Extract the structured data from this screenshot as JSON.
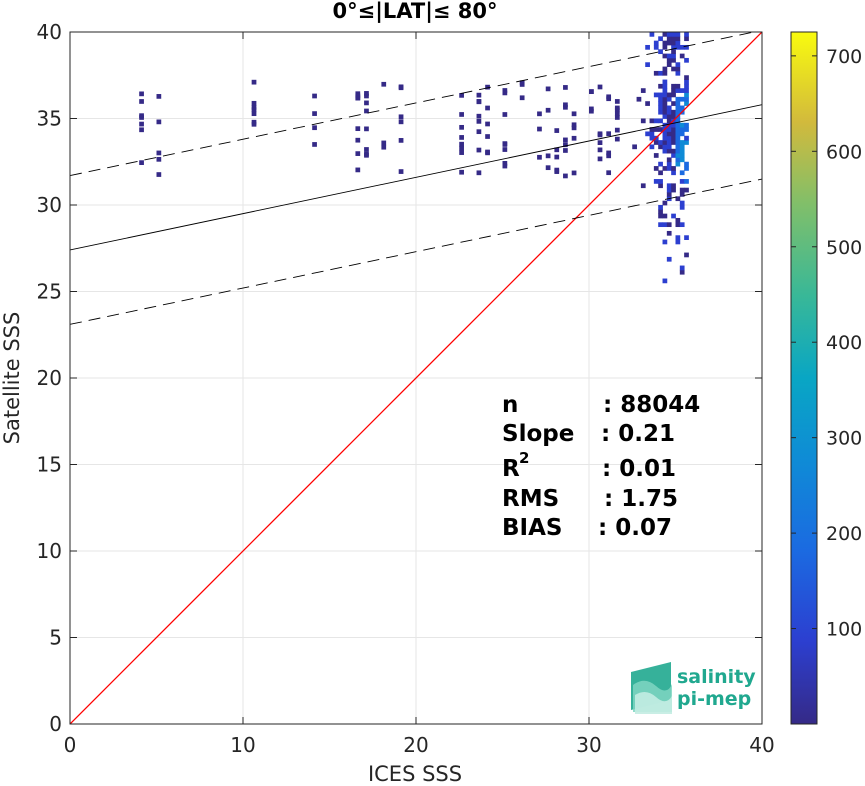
{
  "chart_data": {
    "type": "heatmap",
    "title": "0°≤|LAT|≤ 80°",
    "xlabel": "ICES SSS",
    "ylabel": "Satellite SSS",
    "xlim": [
      0,
      40
    ],
    "ylim": [
      0,
      40
    ],
    "xticks": [
      "0",
      "10",
      "20",
      "30",
      "40"
    ],
    "yticks": [
      "0",
      "5",
      "10",
      "15",
      "20",
      "25",
      "30",
      "35",
      "40"
    ],
    "grid": true,
    "colorbar": {
      "range": [
        0,
        725
      ],
      "ticks": [
        "100",
        "200",
        "300",
        "400",
        "500",
        "600",
        "700"
      ],
      "colormap": "parula"
    },
    "identity_line": {
      "slope": 1,
      "intercept": 0,
      "color": "#ff0000"
    },
    "fit_line": {
      "slope": 0.21,
      "intercept": 27.4,
      "color": "#000000"
    },
    "fit_bounds": [
      {
        "slope": 0.21,
        "intercept": 31.7
      },
      {
        "slope": 0.21,
        "intercept": 23.1
      }
    ],
    "stats": {
      "labels": [
        "n",
        "Slope",
        "R",
        "RMS",
        "BIAS"
      ],
      "r_superscript": "2",
      "values": [
        ": 88044",
        ": 0.21",
        ": 0.01",
        ": 1.75",
        ": 0.07"
      ]
    }
  },
  "logo": {
    "line1": "salinity",
    "line2": "pi-mep"
  }
}
